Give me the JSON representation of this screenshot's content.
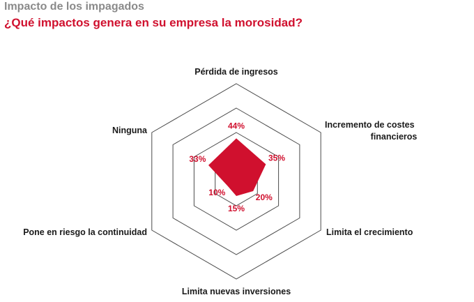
{
  "header": {
    "title": "Impacto de los impagados",
    "subtitle": "¿Qué impactos genera en su empresa la morosidad?"
  },
  "colors": {
    "accent": "#d0102e",
    "grid": "#4a4a4a",
    "title": "#8a8a8a"
  },
  "chart_data": {
    "type": "radar",
    "categories": [
      "Pérdida de ingresos",
      "Incremento de costes financieros",
      "Limita el crecimiento",
      "Limita nuevas inversiones",
      "Pone en riesgo la continuidad",
      "Ninguna"
    ],
    "values": [
      44,
      35,
      20,
      15,
      10,
      33
    ],
    "value_labels": [
      "44%",
      "35%",
      "20%",
      "15%",
      "10%",
      "33%"
    ],
    "rmax": 100,
    "rings": 4
  }
}
